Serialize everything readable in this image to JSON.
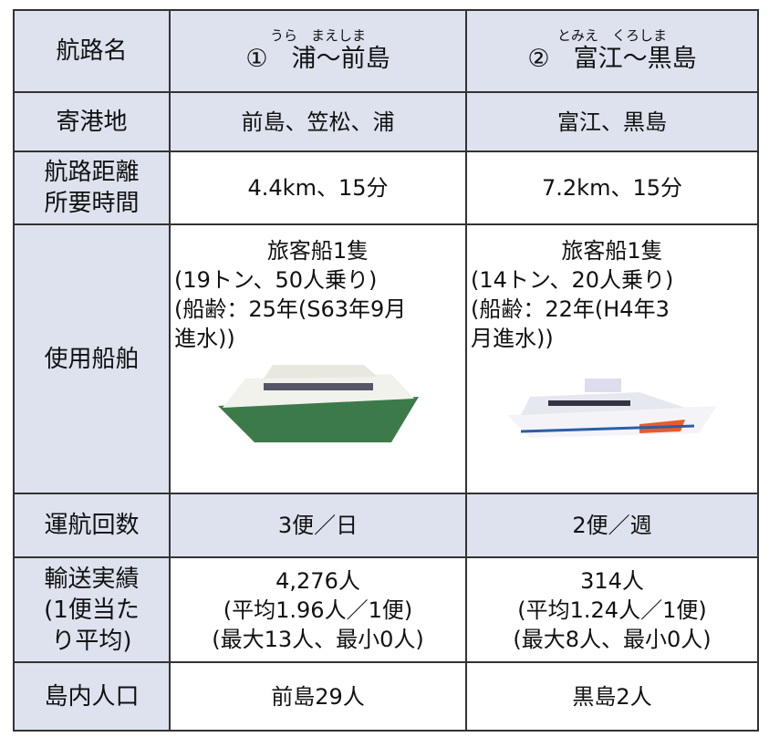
{
  "header": {
    "label": "航路名",
    "routes": [
      {
        "number": "①",
        "ruby": "うら　まえしま",
        "name": "浦〜前島"
      },
      {
        "number": "②",
        "ruby": "とみえ　くろしま",
        "name": "富江〜黒島"
      }
    ]
  },
  "rows": [
    {
      "label": [
        "寄港地"
      ],
      "cells": [
        [
          "前島、笠松、浦"
        ],
        [
          "富江、黒島"
        ]
      ]
    },
    {
      "label": [
        "航路距離",
        "所要時間"
      ],
      "cells": [
        [
          "4.4km、15分"
        ],
        [
          "7.2km、15分"
        ]
      ]
    },
    {
      "label": [
        "使用船舶"
      ],
      "cells": [
        [
          "旅客船1隻",
          "(19トン、50人乗り)",
          "(船齢：25年(S63年9月",
          "進水))"
        ],
        [
          "旅客船1隻",
          "(14トン、20人乗り)",
          "(船齢：22年(H4年3",
          "月進水))"
        ]
      ]
    },
    {
      "label": [
        "運航回数"
      ],
      "cells": [
        [
          "3便／日"
        ],
        [
          "2便／週"
        ]
      ]
    },
    {
      "label": [
        "輸送実績",
        "(1便当た",
        "り平均)"
      ],
      "cells": [
        [
          "4,276人",
          "(平均1.96人／1便)",
          "(最大13人、最小0人)"
        ],
        [
          "314人",
          "(平均1.24人／1便)",
          "(最大8人、最小0人)"
        ]
      ]
    },
    {
      "label": [
        "島内人口"
      ],
      "cells": [
        [
          "前島29人"
        ],
        [
          "黒島2人"
        ]
      ]
    }
  ]
}
